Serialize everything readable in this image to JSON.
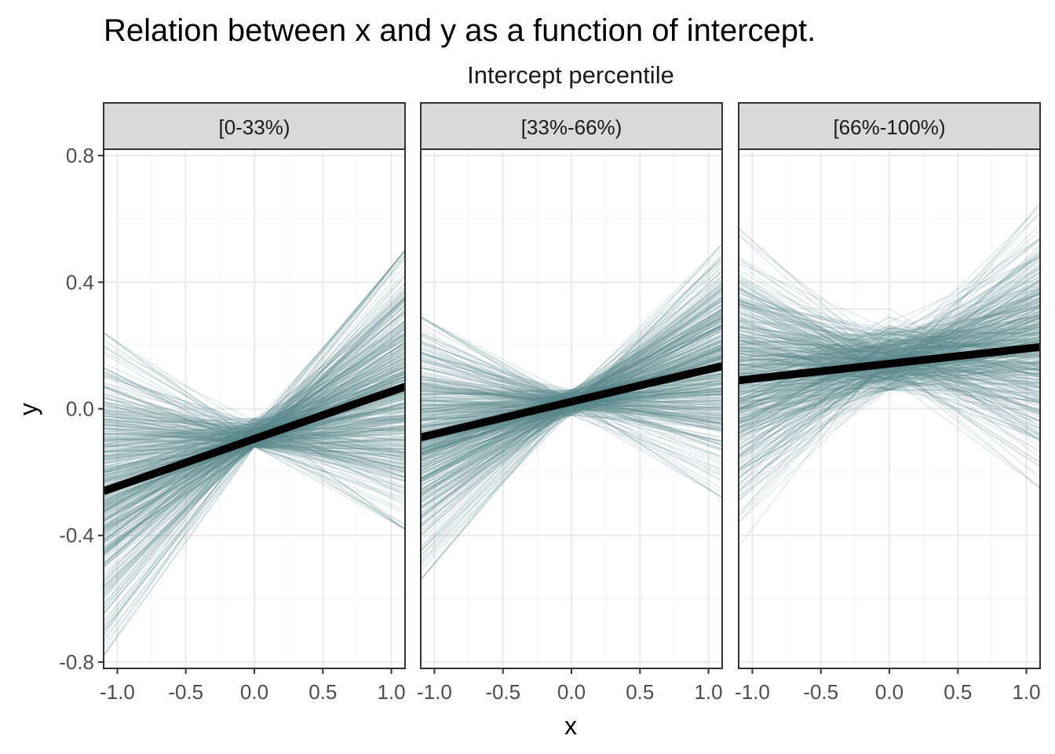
{
  "colors": {
    "thin_line": "#5a8a8e",
    "mean_line": "#000000",
    "strip_fill": "#d9d9d9",
    "grid_major": "#ebebeb",
    "grid_minor": "#f5f5f5",
    "border": "#333333"
  },
  "chart_data": {
    "type": "line",
    "title": "Relation between x and y as a function of intercept.",
    "facet_title": "Intercept percentile",
    "xlabel": "x",
    "ylabel": "y",
    "xlim": [
      -1.1,
      1.1
    ],
    "ylim": [
      -0.82,
      0.82
    ],
    "x_ticks": [
      -1.0,
      -0.5,
      0.0,
      0.5,
      1.0
    ],
    "x_tick_labels": [
      "-1.0",
      "-0.5",
      "0.0",
      "0.5",
      "1.0"
    ],
    "y_ticks": [
      -0.8,
      -0.4,
      0.0,
      0.4,
      0.8
    ],
    "y_tick_labels": [
      "-0.8",
      "-0.4",
      "0.0",
      "0.4",
      "0.8"
    ],
    "grid": true,
    "legend": "none",
    "panels": [
      {
        "strip": "[0-33%)",
        "mean_line": {
          "x": [
            -1.1,
            1.1
          ],
          "y": [
            -0.26,
            0.07
          ]
        },
        "individual_lines": {
          "count": 500,
          "x": [
            -1.1,
            0.0,
            1.1
          ],
          "center_y": [
            -0.25,
            -0.09,
            0.05
          ],
          "spread_y": [
            0.22,
            0.03,
            0.2
          ],
          "range_y": [
            [
              -0.78,
              0.24
            ],
            [
              -0.12,
              -0.03
            ],
            [
              -0.38,
              0.5
            ]
          ]
        }
      },
      {
        "strip": "[33%-66%)",
        "mean_line": {
          "x": [
            -1.1,
            1.1
          ],
          "y": [
            -0.09,
            0.135
          ]
        },
        "individual_lines": {
          "count": 500,
          "x": [
            -1.1,
            0.0,
            1.1
          ],
          "center_y": [
            -0.09,
            0.02,
            0.13
          ],
          "spread_y": [
            0.16,
            0.02,
            0.16
          ],
          "range_y": [
            [
              -0.54,
              0.29
            ],
            [
              -0.02,
              0.06
            ],
            [
              -0.28,
              0.52
            ]
          ]
        }
      },
      {
        "strip": "[66%-100%)",
        "mean_line": {
          "x": [
            -1.1,
            1.1
          ],
          "y": [
            0.09,
            0.195
          ]
        },
        "individual_lines": {
          "count": 500,
          "x": [
            -1.1,
            0.0,
            1.1
          ],
          "center_y": [
            0.1,
            0.15,
            0.2
          ],
          "spread_y": [
            0.18,
            0.05,
            0.16
          ],
          "range_y": [
            [
              -0.45,
              0.57
            ],
            [
              0.06,
              0.37
            ],
            [
              -0.25,
              0.65
            ]
          ]
        }
      }
    ]
  }
}
